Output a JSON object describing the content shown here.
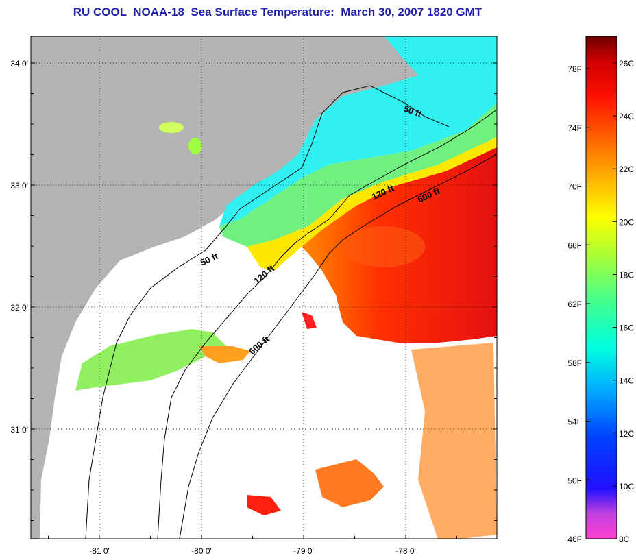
{
  "title": "RU COOL  NOAA-18  Sea Surface Temperature:  March 30, 2007 1820 GMT",
  "map": {
    "lon_ticks": [
      {
        "value": -81,
        "label": "-81 0'"
      },
      {
        "value": -80,
        "label": "-80 0'"
      },
      {
        "value": -79,
        "label": "-79 0'"
      },
      {
        "value": -78,
        "label": "-78 0'"
      }
    ],
    "lat_ticks": [
      {
        "value": 34,
        "label": "34 0'"
      },
      {
        "value": 33,
        "label": "33 0'"
      },
      {
        "value": 32,
        "label": "32 0'"
      },
      {
        "value": 31,
        "label": "31 0'"
      }
    ],
    "isobath_labels": [
      {
        "text": "50 ft"
      },
      {
        "text": "50 ft"
      },
      {
        "text": "120 ft"
      },
      {
        "text": "120 ft"
      },
      {
        "text": "600 ft"
      },
      {
        "text": "600 ft"
      }
    ],
    "colors": {
      "land": "#b3b3b3",
      "cloud": "#ffffff",
      "frame": "#000000"
    }
  },
  "colorbar": {
    "f_labels": [
      "78F",
      "74F",
      "70F",
      "66F",
      "62F",
      "58F",
      "54F",
      "50F",
      "46F"
    ],
    "c_labels": [
      "26C",
      "24C",
      "22C",
      "20C",
      "18C",
      "16C",
      "14C",
      "12C",
      "10C",
      "8C"
    ],
    "stops": [
      "#ff40d0",
      "#a040e0",
      "#1010ff",
      "#0060ff",
      "#00c0ff",
      "#00ffe0",
      "#40ffa0",
      "#a0ff40",
      "#ffff00",
      "#ffc000",
      "#ff8000",
      "#ff3000",
      "#e00000",
      "#700000"
    ]
  }
}
